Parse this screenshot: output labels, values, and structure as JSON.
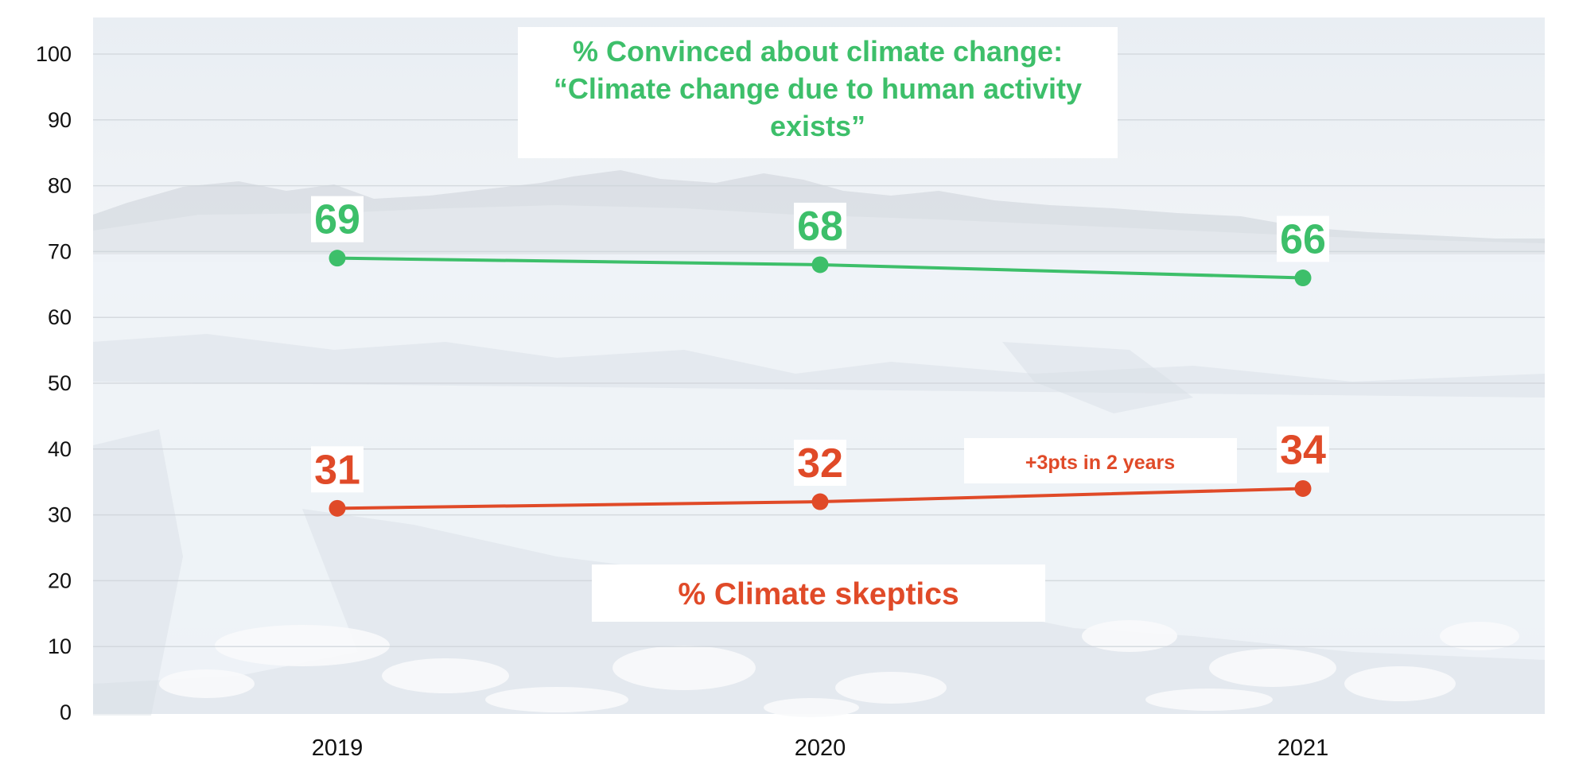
{
  "chart_data": {
    "type": "line",
    "categories": [
      "2019",
      "2020",
      "2021"
    ],
    "ylim": [
      0,
      100
    ],
    "y_ticks": [
      0,
      10,
      20,
      30,
      40,
      50,
      60,
      70,
      80,
      90,
      100
    ],
    "grid": true,
    "series": [
      {
        "name": "% Convinced about climate change: “Climate change due to human activity exists”",
        "name_lines": [
          "% Convinced about climate change:",
          "“Climate change due to human activity",
          "exists”"
        ],
        "values": [
          69,
          68,
          66
        ],
        "color": "#3dbf6a"
      },
      {
        "name": "% Climate skeptics",
        "name_lines": [
          "% Climate skeptics"
        ],
        "values": [
          31,
          32,
          34
        ],
        "color": "#e04a28"
      }
    ],
    "annotations": [
      {
        "text": "+3pts in 2 years",
        "series": 1,
        "between": [
          "2020",
          "2021"
        ]
      }
    ]
  },
  "colors": {
    "sky_top": "#e9eef3",
    "ice": "#eef3f7",
    "water": "#d6dee5",
    "axis_text": "#111111"
  }
}
